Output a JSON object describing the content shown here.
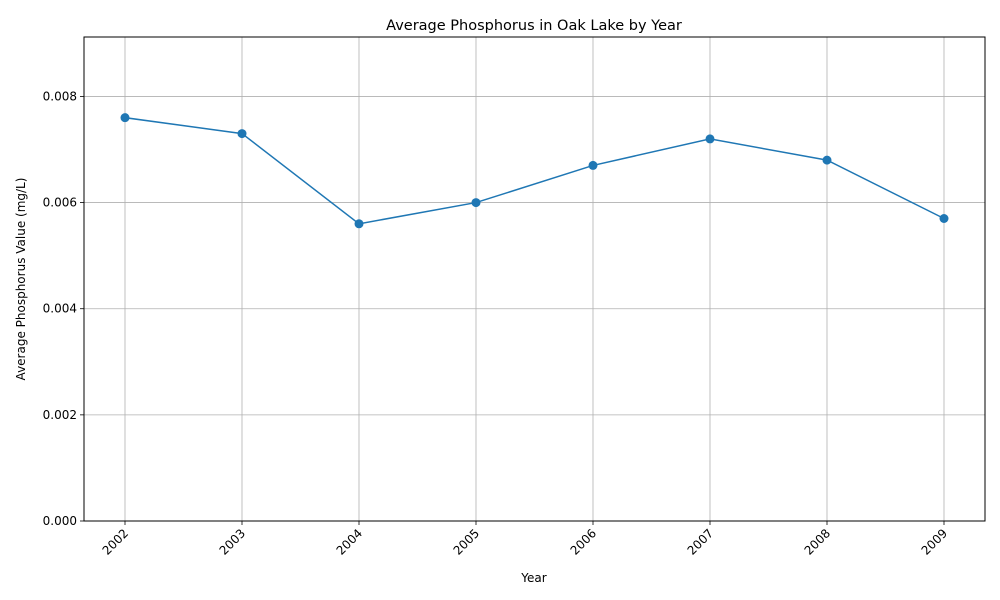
{
  "chart_data": {
    "type": "line",
    "title": "Average Phosphorus in Oak Lake by Year",
    "xlabel": "Year",
    "ylabel": "Average Phosphorus Value (mg/L)",
    "x": [
      "2002",
      "2003",
      "2004",
      "2005",
      "2006",
      "2007",
      "2008",
      "2009"
    ],
    "series": [
      {
        "values": [
          0.0076,
          0.0073,
          0.0056,
          0.006,
          0.0067,
          0.0072,
          0.0068,
          0.0057
        ]
      }
    ],
    "y_ticks": [
      "0.000",
      "0.002",
      "0.004",
      "0.006",
      "0.008"
    ],
    "ylim": [
      0,
      0.00912
    ],
    "grid": true,
    "markers": true,
    "line_color": "#1f77b4"
  }
}
